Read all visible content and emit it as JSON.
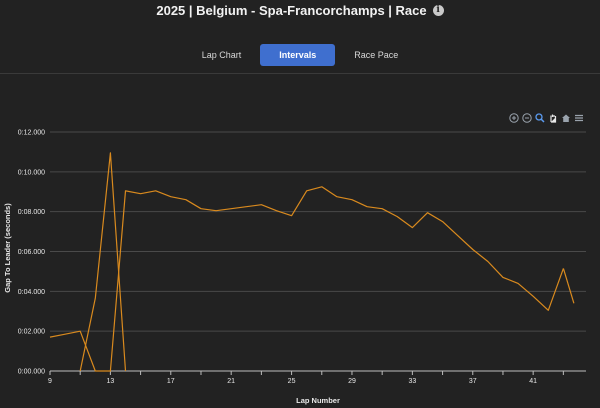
{
  "header": {
    "title": "2025 | Belgium - Spa-Francorchamps | Race",
    "info_icon": "info-icon"
  },
  "tabs": [
    {
      "label": "Lap Chart",
      "active": false
    },
    {
      "label": "Intervals",
      "active": true
    },
    {
      "label": "Race Pace",
      "active": false
    }
  ],
  "toolbar": [
    "zoom-in-icon",
    "zoom-out-icon",
    "zoom-select-icon",
    "pan-hand-icon",
    "home-icon",
    "menu-icon"
  ],
  "chart_data": {
    "type": "line",
    "title": "",
    "xlabel": "Lap Number",
    "ylabel": "Gap To Leader (seconds)",
    "x_ticks": [
      "9",
      "13",
      "17",
      "21",
      "25",
      "29",
      "33",
      "37",
      "41"
    ],
    "y_ticks": [
      "0:00.000",
      "0:02.000",
      "0:04.000",
      "0:06.000",
      "0:08.000",
      "0:10.000",
      "0:12.000"
    ],
    "xlim": [
      9,
      44.5
    ],
    "ylim": [
      0,
      12
    ],
    "grid": true,
    "series_color": "#d98a1e",
    "series": [
      {
        "x": [
          9,
          10,
          11,
          12,
          13,
          14,
          15,
          16,
          17,
          18,
          19,
          20,
          21,
          22,
          23,
          24,
          25,
          26,
          27,
          28,
          29,
          30,
          31,
          32,
          33,
          34,
          35,
          36,
          37,
          38,
          39,
          40,
          41,
          42,
          43
        ],
        "y": [
          1.7,
          1.85,
          2.0,
          0.0,
          0.0,
          9.05,
          8.9,
          9.05,
          8.75,
          8.6,
          8.15,
          8.05,
          8.15,
          8.25,
          8.35,
          8.05,
          7.8,
          9.05,
          9.25,
          8.75,
          8.6,
          8.25,
          8.15,
          7.75,
          7.2,
          7.95,
          7.5,
          6.8,
          6.1,
          5.5,
          4.7,
          4.4,
          3.75,
          3.05,
          5.15
        ]
      },
      {
        "x": [
          43,
          43.7
        ],
        "y": [
          5.15,
          3.4
        ]
      },
      {
        "x": [
          11,
          12,
          13,
          14
        ],
        "y": [
          0.0,
          3.65,
          10.95,
          0.0
        ]
      }
    ]
  }
}
